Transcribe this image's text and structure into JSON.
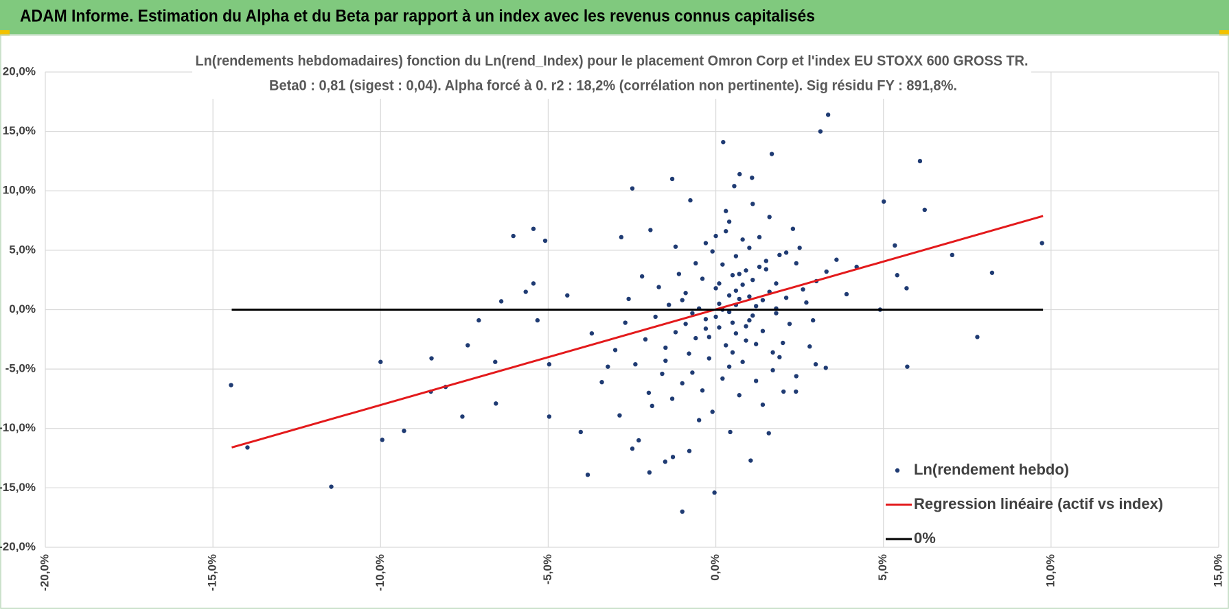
{
  "header": {
    "title": "ADAM Informe. Estimation du Alpha et du Beta par rapport à un index avec les revenus connus capitalisés"
  },
  "chart_data": {
    "type": "scatter",
    "title": "Ln(rendements hebdomadaires) fonction du Ln(rend_Index) pour le placement Omron Corp et l'index EU STOXX 600 GROSS TR.",
    "subtitle": "Beta0 : 0,81 (sigest : 0,04).  Alpha forcé à 0. r2 : 18,2% (corrélation non pertinente). Sig résidu FY : 891,8%.",
    "xlim": [
      -20,
      15
    ],
    "ylim": [
      -20,
      20
    ],
    "xticks": [
      {
        "value": -20,
        "label": "-20,0%"
      },
      {
        "value": -15,
        "label": "-15,0%"
      },
      {
        "value": -10,
        "label": "-10,0%"
      },
      {
        "value": -5,
        "label": "-5,0%"
      },
      {
        "value": 0,
        "label": "0,0%"
      },
      {
        "value": 5,
        "label": "5,0%"
      },
      {
        "value": 10,
        "label": "10,0%"
      },
      {
        "value": 15,
        "label": "15,0%"
      }
    ],
    "yticks": [
      {
        "value": -20,
        "label": "-20,0%"
      },
      {
        "value": -15,
        "label": "-15,0%"
      },
      {
        "value": -10,
        "label": "-10,0%"
      },
      {
        "value": -5,
        "label": "-5,0%"
      },
      {
        "value": 0,
        "label": "0,0%"
      },
      {
        "value": 5,
        "label": "5,0%"
      },
      {
        "value": 10,
        "label": "10,0%"
      },
      {
        "value": 15,
        "label": "15,0%"
      },
      {
        "value": 20,
        "label": "20,0%"
      }
    ],
    "grid": true,
    "legend": "bottom-right",
    "series": [
      {
        "name": "Ln(rendement hebdo)",
        "type": "scatter",
        "color": "#1f3b73",
        "x": [
          -14.46,
          -13.97,
          -11.47,
          -10.0,
          -9.95,
          -9.3,
          -8.48,
          -8.5,
          -8.06,
          -7.56,
          -7.4,
          -7.07,
          -6.56,
          -6.58,
          -6.04,
          -5.44,
          -5.09,
          -6.4,
          -5.67,
          -5.44,
          -5.32,
          -4.97,
          -4.97,
          -4.03,
          -3.82,
          -4.43,
          -2.49,
          -2.82,
          -1.95,
          -1.3,
          -0.76,
          0.22,
          0.55,
          0.71,
          1.08,
          1.67,
          3.12,
          3.35,
          6.09,
          6.23,
          5.01,
          7.05,
          8.24,
          9.73,
          7.8,
          5.71,
          5.69,
          5.41,
          5.34,
          4.9,
          3.28,
          2.98,
          -2.49,
          -2.3,
          -1.98,
          -1.51,
          -1.28,
          -0.79,
          -1.0,
          -0.04,
          1.04,
          0.43,
          1.58,
          2.39,
          2.02,
          -2.87,
          -3.22,
          0.1,
          0.4,
          -0.3,
          0.8,
          1.2,
          -0.6,
          0.5,
          1.5,
          -1.2,
          0.2,
          0.9,
          -0.9,
          1.8,
          0.6,
          -0.2,
          1.1,
          2.1,
          -1.5,
          0.3,
          0.7,
          -0.4,
          1.4,
          2.4,
          -1.8,
          0.0,
          1.0,
          -0.7,
          0.4,
          1.7,
          -1.1,
          2.7,
          0.2,
          1.3,
          -2.1,
          0.8,
          -0.1,
          1.9,
          -1.4,
          2.2,
          0.5,
          -0.5,
          1.6,
          -2.4,
          0.9,
          3.0,
          -1.0,
          0.6,
          1.2,
          -0.3,
          2.5,
          -1.7,
          0.1,
          1.4,
          -0.8,
          3.3,
          0.3,
          -2.7,
          1.1,
          2.0,
          -0.6,
          0.7,
          1.8,
          -1.3,
          0.4,
          2.9,
          -0.2,
          1.5,
          -3.0,
          0.0,
          1.0,
          2.3,
          -0.9,
          0.8,
          1.7,
          -2.2,
          0.2,
          3.6,
          -1.6,
          0.5,
          1.3,
          -0.4,
          2.6,
          -1.0,
          0.6,
          1.9,
          -3.4,
          0.9,
          0.1,
          2.1,
          -0.7,
          1.2,
          -1.9,
          0.3,
          2.8,
          -0.1,
          1.6,
          -2.6,
          0.7,
          3.9,
          -0.5,
          1.4,
          -1.2,
          0.4,
          2.4,
          -3.7,
          1.0,
          0.0,
          4.2,
          -2.0,
          1.1,
          -0.3,
          0.6,
          1.8,
          -1.5
        ],
        "values": [
          -6.35,
          -11.6,
          -14.9,
          -4.4,
          -10.96,
          -10.2,
          -4.1,
          -6.9,
          -6.5,
          -9.0,
          -3.0,
          -0.9,
          -7.9,
          -4.4,
          6.2,
          6.8,
          5.8,
          0.7,
          1.5,
          2.2,
          -0.9,
          -4.6,
          -9.0,
          -10.3,
          -13.9,
          1.2,
          10.2,
          6.1,
          6.7,
          11.0,
          9.2,
          14.1,
          10.4,
          11.4,
          11.1,
          13.1,
          15.0,
          16.4,
          12.5,
          8.4,
          9.1,
          4.6,
          3.1,
          5.6,
          -2.3,
          -4.8,
          1.8,
          2.9,
          5.4,
          0.0,
          -4.9,
          -4.6,
          -11.7,
          -11.0,
          -13.7,
          -12.8,
          -12.4,
          -11.9,
          -17.0,
          -15.4,
          -12.7,
          -10.3,
          -10.4,
          -6.9,
          -6.9,
          -8.9,
          -4.8,
          0.5,
          1.2,
          -0.8,
          2.1,
          0.3,
          -2.4,
          -1.1,
          3.4,
          -1.9,
          3.8,
          -2.6,
          1.4,
          2.2,
          4.5,
          -4.1,
          -0.5,
          1.0,
          -3.2,
          -3.0,
          0.9,
          2.6,
          -1.8,
          3.9,
          -0.6,
          1.8,
          5.2,
          -5.3,
          -0.2,
          -3.6,
          3.0,
          0.6,
          -5.8,
          6.1,
          -2.5,
          -4.4,
          4.9,
          4.6,
          0.4,
          -1.2,
          2.9,
          0.1,
          1.5,
          -4.6,
          3.3,
          2.4,
          -6.2,
          -2.0,
          -6.0,
          5.6,
          5.2,
          1.9,
          -1.5,
          0.8,
          -3.7,
          3.2,
          6.6,
          -1.1,
          2.5,
          -2.8,
          3.9,
          -7.2,
          -0.3,
          -7.5,
          7.4,
          -0.9,
          -2.3,
          4.1,
          -3.4,
          -0.6,
          1.1,
          6.8,
          -1.2,
          5.9,
          -5.1,
          2.8,
          0.0,
          4.2,
          -5.4,
          -3.6,
          3.6,
          -6.8,
          1.7,
          0.8,
          1.6,
          -4.0,
          -6.1,
          -1.4,
          2.2,
          4.8,
          -0.3,
          -2.9,
          -8.1,
          8.3,
          -3.1,
          -8.6,
          7.8,
          0.9,
          3.0,
          1.3,
          -9.3,
          -8.0,
          5.3,
          -4.8,
          -5.6,
          -2.0,
          -0.9,
          6.2,
          3.6,
          -7.0,
          8.9,
          -1.6,
          0.4,
          0.1,
          -4.3
        ]
      },
      {
        "name": "Regression linéaire (actif vs index)",
        "type": "line",
        "color": "#e31a1c",
        "x": [
          -14.44,
          9.76
        ],
        "values": [
          -11.6,
          7.88
        ]
      },
      {
        "name": "0%",
        "type": "line",
        "color": "#000000",
        "x": [
          -14.44,
          9.76
        ],
        "values": [
          0,
          0
        ]
      }
    ]
  }
}
